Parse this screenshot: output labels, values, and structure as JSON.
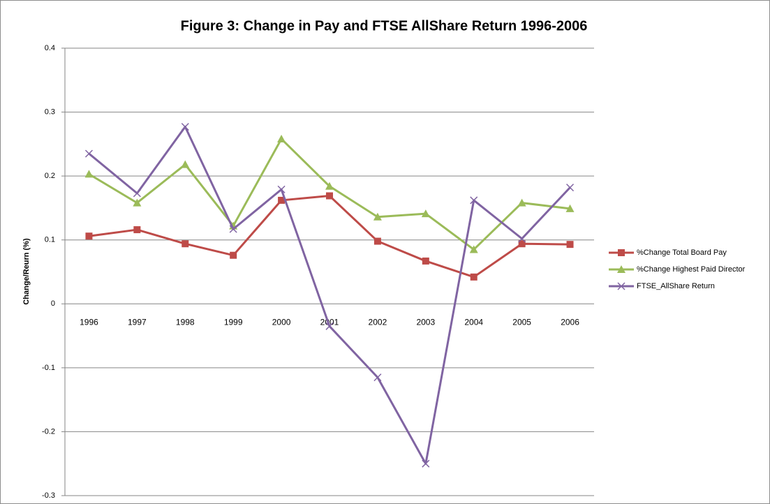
{
  "chart_data": {
    "type": "line",
    "title": "Figure 3: Change in Pay and FTSE AllShare Return 1996-2006",
    "y_label": "Change/Reurn (%)",
    "categories": [
      "1996",
      "1997",
      "1998",
      "1999",
      "2000",
      "2001",
      "2002",
      "2003",
      "2004",
      "2005",
      "2006"
    ],
    "series": [
      {
        "name": "%Change Total Board Pay",
        "color": "#be4b48",
        "marker": "square",
        "values": [
          0.106,
          0.116,
          0.094,
          0.076,
          0.162,
          0.169,
          0.098,
          0.067,
          0.042,
          0.094,
          0.093
        ]
      },
      {
        "name": "%Change Highest Paid Director",
        "color": "#9bbb59",
        "marker": "triangle",
        "values": [
          0.203,
          0.158,
          0.218,
          0.122,
          0.258,
          0.184,
          0.136,
          0.141,
          0.085,
          0.158,
          0.149
        ]
      },
      {
        "name": "FTSE_AllShare Return",
        "color": "#8064a2",
        "marker": "x",
        "values": [
          0.235,
          0.173,
          0.277,
          0.117,
          0.179,
          -0.035,
          -0.115,
          -0.25,
          0.162,
          0.102,
          0.182
        ]
      }
    ],
    "ylim": [
      -0.3,
      0.4
    ],
    "yticks": [
      -0.3,
      -0.2,
      -0.1,
      0,
      0.1,
      0.2,
      0.3,
      0.4
    ],
    "grid": true,
    "legend": "right"
  }
}
